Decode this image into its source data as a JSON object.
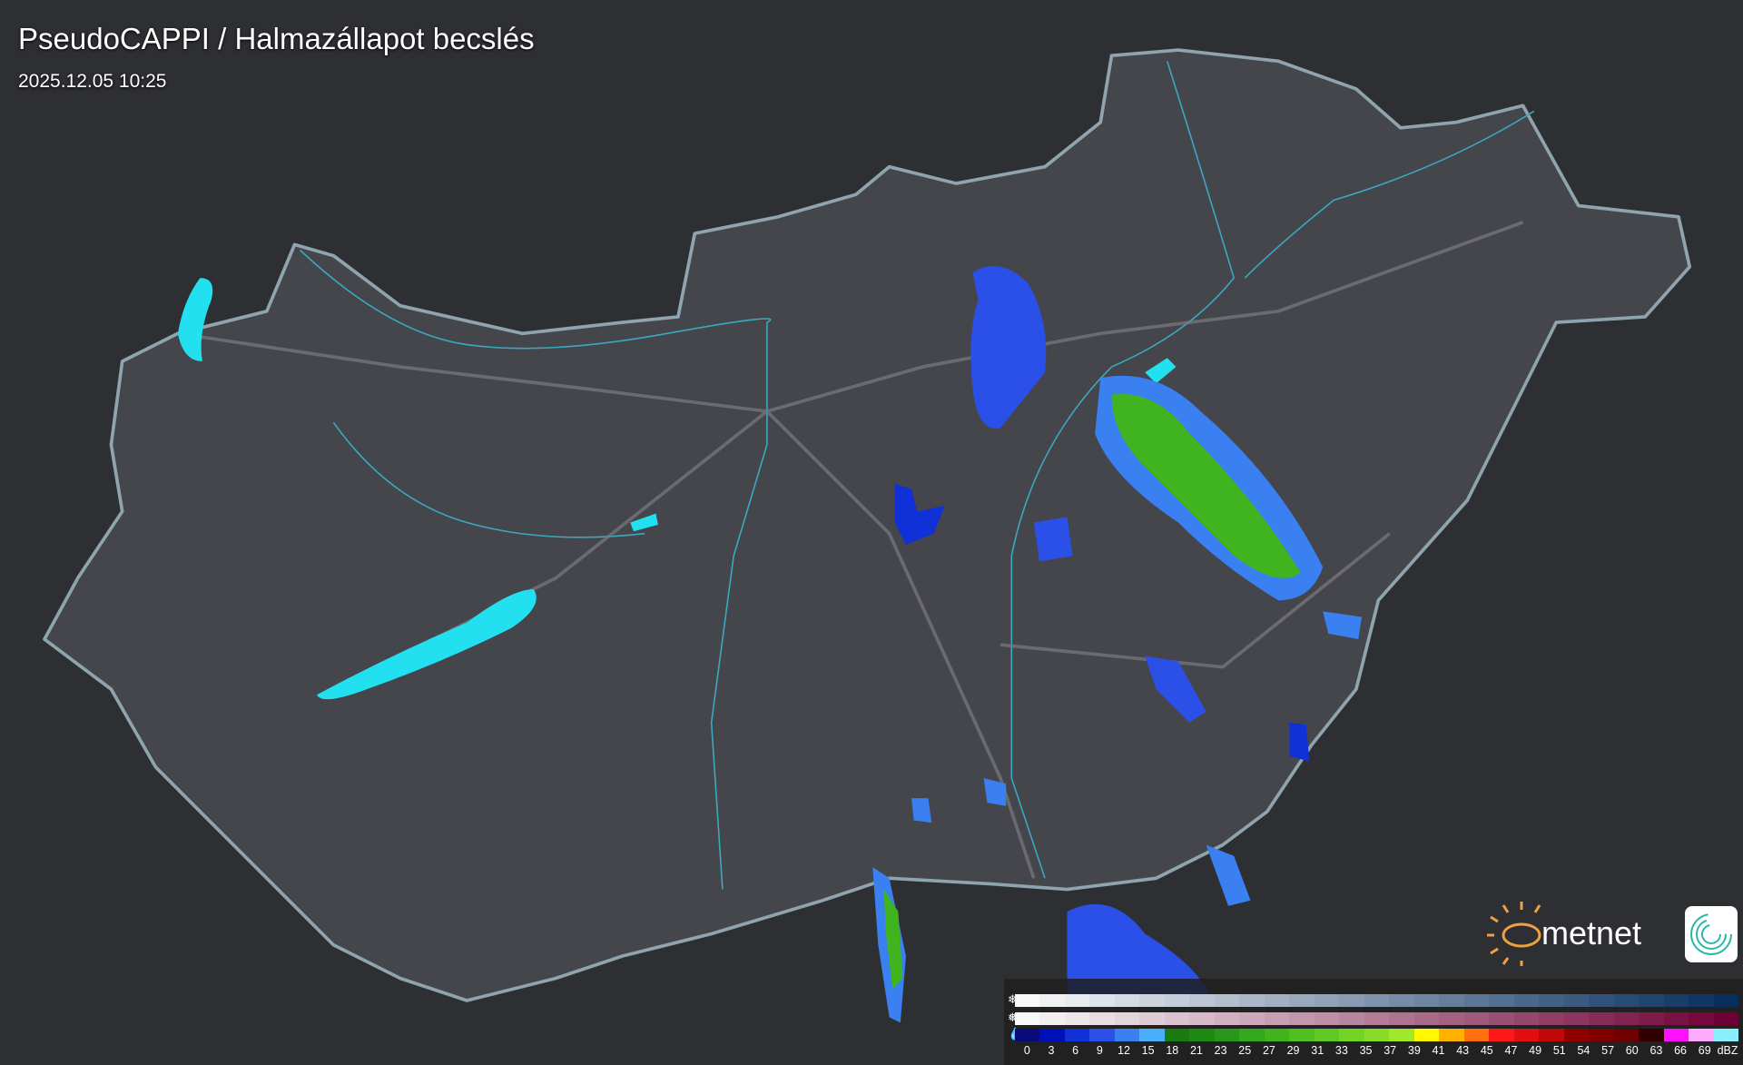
{
  "header": {
    "title": "PseudoCAPPI  / Halmazállapot becslés",
    "timestamp": "2025.12.05 10:25"
  },
  "logo": {
    "brand": "metnet",
    "sun_color": "#f0a040",
    "app_icon_color": "#2ab8a8"
  },
  "map": {
    "background": "#2e2f33",
    "country_fill": "#45464c",
    "border_color": "#8fa4ae",
    "river_color": "#3aa8c0",
    "lake_color": "#22e0f0"
  },
  "legend": {
    "icons": [
      "snowflake-icon",
      "sleet-icon",
      "raindrop-icon"
    ],
    "snow_colors": [
      "#f8f8fa",
      "#062f5e"
    ],
    "wet_colors": [
      "#f8f8f8",
      "#6e0036"
    ],
    "rain_colors": [
      "#0a0a7a",
      "#0010b8",
      "#1030d8",
      "#2a50e8",
      "#3a80f0",
      "#48b0f8",
      "#1a7a10",
      "#1e8a14",
      "#28961a",
      "#34a81c",
      "#40b41e",
      "#50c020",
      "#60c822",
      "#74d424",
      "#88dc28",
      "#a0e82a",
      "#fff800",
      "#ffb000",
      "#ff7010",
      "#ff1818",
      "#e01010",
      "#c00808",
      "#900000",
      "#800000",
      "#700000",
      "#300000",
      "#ff10ff",
      "#ffaaff",
      "#88f0ff"
    ],
    "labels": [
      "0",
      "3",
      "6",
      "9",
      "12",
      "15",
      "18",
      "21",
      "23",
      "25",
      "27",
      "29",
      "31",
      "33",
      "35",
      "37",
      "39",
      "41",
      "43",
      "45",
      "47",
      "49",
      "51",
      "54",
      "57",
      "60",
      "63",
      "66",
      "69"
    ],
    "unit": "dBZ"
  }
}
